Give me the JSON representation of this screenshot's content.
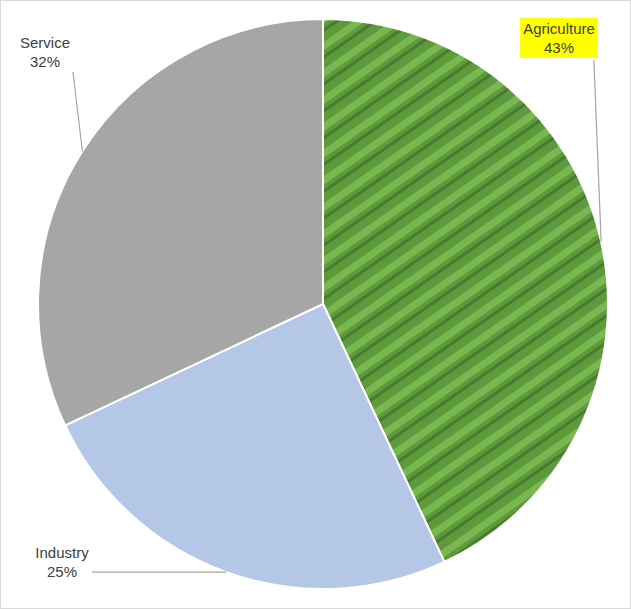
{
  "chart_data": {
    "type": "pie",
    "categories": [
      "Agriculture",
      "Industry",
      "Service"
    ],
    "values": [
      43,
      25,
      32
    ],
    "value_labels": [
      "43%",
      "25%",
      "32%"
    ],
    "colors": [
      "#5e9a3c",
      "#b4c7e7",
      "#a6a6a6"
    ],
    "data_labels": true
  }
}
